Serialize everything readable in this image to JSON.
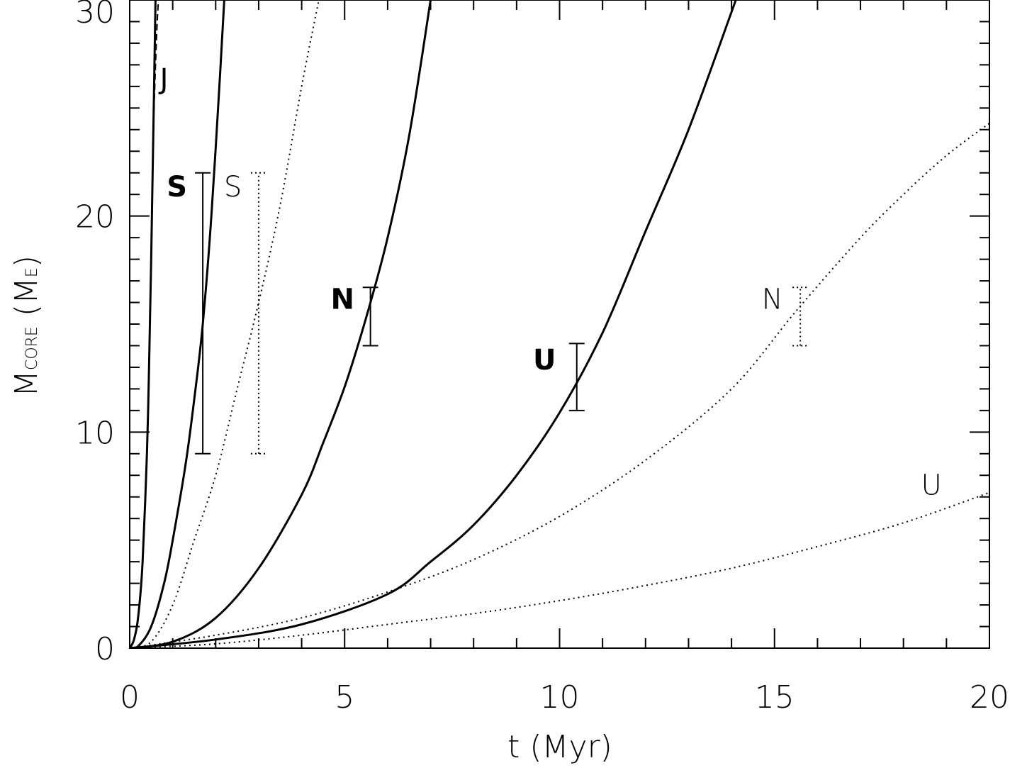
{
  "chart_data": {
    "type": "line",
    "xlabel": "t  (Myr)",
    "ylabel_main": "M",
    "ylabel_sub": "CORE",
    "ylabel_unit_open": "  (M",
    "ylabel_unit_sub": "E",
    "ylabel_unit_close": ")",
    "xlim": [
      0,
      20
    ],
    "ylim": [
      0,
      30
    ],
    "x_ticks": [
      "0",
      "5",
      "10",
      "15",
      "20"
    ],
    "y_ticks": [
      "0",
      "10",
      "20",
      "30"
    ],
    "grid": false,
    "series": [
      {
        "style": "solid",
        "x": [
          0,
          0.1,
          0.2,
          0.3,
          0.4,
          0.45,
          0.5,
          0.55,
          0.6
        ],
        "y": [
          0,
          0.4,
          1.5,
          4,
          9,
          13,
          18,
          24,
          30
        ]
      },
      {
        "style": "dashed",
        "x": [
          0.55,
          0.6,
          0.64,
          0.67
        ],
        "y": [
          24,
          27,
          29,
          30
        ]
      },
      {
        "style": "solid",
        "x": [
          0,
          0.2,
          0.5,
          0.8,
          1.0,
          1.3,
          1.5,
          1.7,
          1.9,
          2.1,
          2.2
        ],
        "y": [
          0,
          0.1,
          1,
          3,
          5,
          8.5,
          11.5,
          15,
          20,
          26.5,
          30
        ]
      },
      {
        "style": "dotted",
        "x": [
          0,
          0.5,
          1.0,
          1.5,
          2.0,
          2.5,
          3.0,
          3.5,
          4.0,
          4.4
        ],
        "y": [
          0,
          0.3,
          2,
          5,
          8,
          12,
          16,
          20.5,
          26,
          30
        ]
      },
      {
        "style": "solid",
        "x": [
          0,
          1,
          2,
          3,
          4,
          4.5,
          5,
          5.5,
          6,
          6.5,
          7.0
        ],
        "y": [
          0,
          0.3,
          1.4,
          3.7,
          7.1,
          9.5,
          12.1,
          15.3,
          19,
          23.7,
          30
        ]
      },
      {
        "style": "solid",
        "x": [
          0,
          2,
          4,
          6,
          7,
          8,
          9,
          10,
          11,
          12,
          13,
          14.1
        ],
        "y": [
          0,
          0.4,
          1.1,
          2.5,
          4,
          5.7,
          8,
          10.9,
          14.6,
          19.3,
          24,
          30
        ]
      },
      {
        "style": "dotted",
        "x": [
          0,
          2,
          4,
          6,
          8,
          10,
          12,
          14,
          15.5,
          17,
          18,
          19,
          20
        ],
        "y": [
          0,
          0.6,
          1.4,
          2.6,
          4.1,
          6.1,
          8.7,
          12,
          15.6,
          19,
          21,
          22.8,
          24.3
        ]
      },
      {
        "style": "dotted",
        "x": [
          0,
          2,
          4,
          6,
          8,
          10,
          12,
          14,
          16,
          18,
          20
        ],
        "y": [
          0,
          0.2,
          0.6,
          1.1,
          1.6,
          2.2,
          2.9,
          3.7,
          4.7,
          5.8,
          7.2
        ]
      }
    ],
    "error_bars": [
      {
        "style": "solid",
        "x": 1.7,
        "y_low": 9,
        "y_high": 22
      },
      {
        "style": "dotted",
        "x": 3.0,
        "y_low": 9,
        "y_high": 22
      },
      {
        "style": "solid",
        "x": 5.6,
        "y_low": 14,
        "y_high": 16.7
      },
      {
        "style": "dotted",
        "x": 15.6,
        "y_low": 14,
        "y_high": 16.7
      },
      {
        "style": "solid",
        "x": 10.4,
        "y_low": 11,
        "y_high": 14.1
      }
    ],
    "annotations": [
      {
        "text": "J",
        "x": 0.8,
        "y": 25.9,
        "weight": "normal"
      },
      {
        "text": "S",
        "x": 1.1,
        "y": 20.9,
        "weight": "bold"
      },
      {
        "text": "S",
        "x": 2.4,
        "y": 20.9,
        "weight": "thin"
      },
      {
        "text": "N",
        "x": 4.95,
        "y": 15.7,
        "weight": "bold"
      },
      {
        "text": "U",
        "x": 9.65,
        "y": 12.9,
        "weight": "bold"
      },
      {
        "text": "N",
        "x": 14.95,
        "y": 15.7,
        "weight": "thin"
      },
      {
        "text": "U",
        "x": 18.65,
        "y": 7.1,
        "weight": "thin"
      }
    ]
  }
}
